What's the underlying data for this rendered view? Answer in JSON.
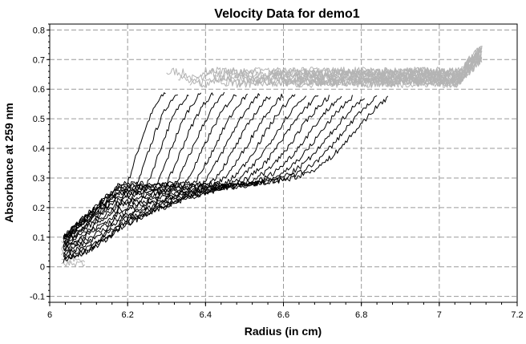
{
  "chart_data": {
    "type": "line",
    "title": "Velocity Data for demo1",
    "xlabel": "Radius (in cm)",
    "ylabel": "Absorbance at 259 nm",
    "xlim": [
      6.0,
      7.2
    ],
    "ylim": [
      -0.12,
      0.82
    ],
    "xticks": [
      6,
      6.2,
      6.4,
      6.6,
      6.8,
      7,
      7.2
    ],
    "xtick_labels": [
      "6",
      "6.2",
      "6.4",
      "6.6",
      "6.8",
      "7",
      "7.2"
    ],
    "yticks": [
      -0.1,
      0,
      0.1,
      0.2,
      0.3,
      0.4,
      0.5,
      0.6,
      0.7,
      0.8
    ],
    "ytick_labels": [
      "-0.1",
      "0",
      "0.1",
      "0.2",
      "0.3",
      "0.4",
      "0.5",
      "0.6",
      "0.7",
      "0.8"
    ],
    "grid": true,
    "colors": {
      "included_scans": "#000000",
      "excluded_region": "#b4b4b4"
    },
    "meniscus_radius": 6.03,
    "bottom_radius": 7.11,
    "plateau_absorbance": 0.64,
    "series": [
      {
        "boundary_midpoint": 6.215,
        "baseline": 0.05
      },
      {
        "boundary_midpoint": 6.245,
        "baseline": 0.07
      },
      {
        "boundary_midpoint": 6.275,
        "baseline": 0.09
      },
      {
        "boundary_midpoint": 6.305,
        "baseline": 0.11
      },
      {
        "boundary_midpoint": 6.335,
        "baseline": 0.13
      },
      {
        "boundary_midpoint": 6.365,
        "baseline": 0.15
      },
      {
        "boundary_midpoint": 6.395,
        "baseline": 0.165
      },
      {
        "boundary_midpoint": 6.425,
        "baseline": 0.18
      },
      {
        "boundary_midpoint": 6.455,
        "baseline": 0.195
      },
      {
        "boundary_midpoint": 6.485,
        "baseline": 0.21
      },
      {
        "boundary_midpoint": 6.515,
        "baseline": 0.22
      },
      {
        "boundary_midpoint": 6.545,
        "baseline": 0.23
      },
      {
        "boundary_midpoint": 6.575,
        "baseline": 0.24
      },
      {
        "boundary_midpoint": 6.605,
        "baseline": 0.25
      },
      {
        "boundary_midpoint": 6.635,
        "baseline": 0.255
      },
      {
        "boundary_midpoint": 6.665,
        "baseline": 0.26
      },
      {
        "boundary_midpoint": 6.695,
        "baseline": 0.265
      },
      {
        "boundary_midpoint": 6.725,
        "baseline": 0.27
      },
      {
        "boundary_midpoint": 6.755,
        "baseline": 0.275
      },
      {
        "boundary_midpoint": 6.785,
        "baseline": 0.28
      }
    ]
  }
}
